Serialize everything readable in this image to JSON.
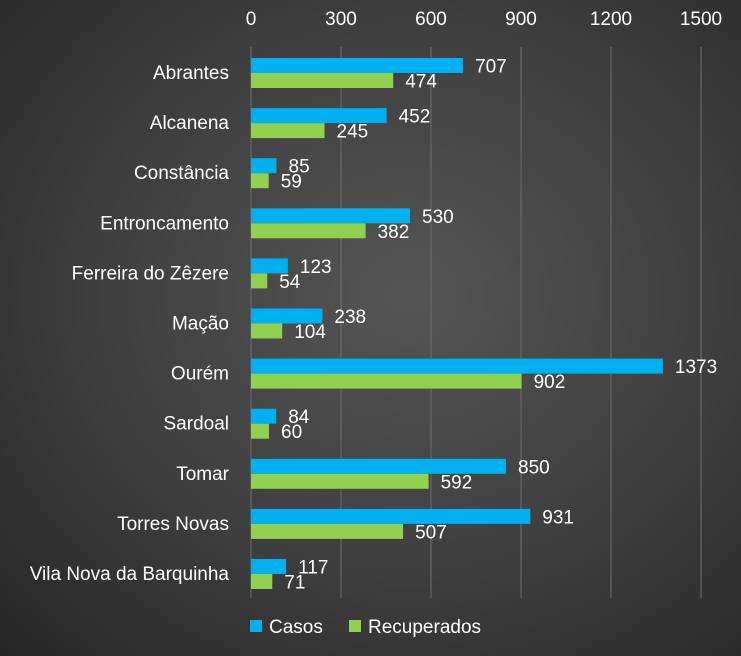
{
  "chart_data": {
    "type": "bar",
    "orientation": "horizontal",
    "categories": [
      "Abrantes",
      "Alcanena",
      "Constância",
      "Entroncamento",
      "Ferreira do Zêzere",
      "Mação",
      "Ourém",
      "Sardoal",
      "Tomar",
      "Torres Novas",
      "Vila Nova da Barquinha"
    ],
    "series": [
      {
        "name": "Casos",
        "color": "#00b0f0",
        "values": [
          707,
          452,
          85,
          530,
          123,
          238,
          1373,
          84,
          850,
          931,
          117
        ]
      },
      {
        "name": "Recuperados",
        "color": "#92d050",
        "values": [
          474,
          245,
          59,
          382,
          54,
          104,
          902,
          60,
          592,
          507,
          71
        ]
      }
    ],
    "x_ticks": [
      "0",
      "300",
      "600",
      "900",
      "1200",
      "1500"
    ],
    "xlim": [
      0,
      1500
    ],
    "xaxis_position": "top",
    "grid": true,
    "legend_position": "bottom"
  }
}
